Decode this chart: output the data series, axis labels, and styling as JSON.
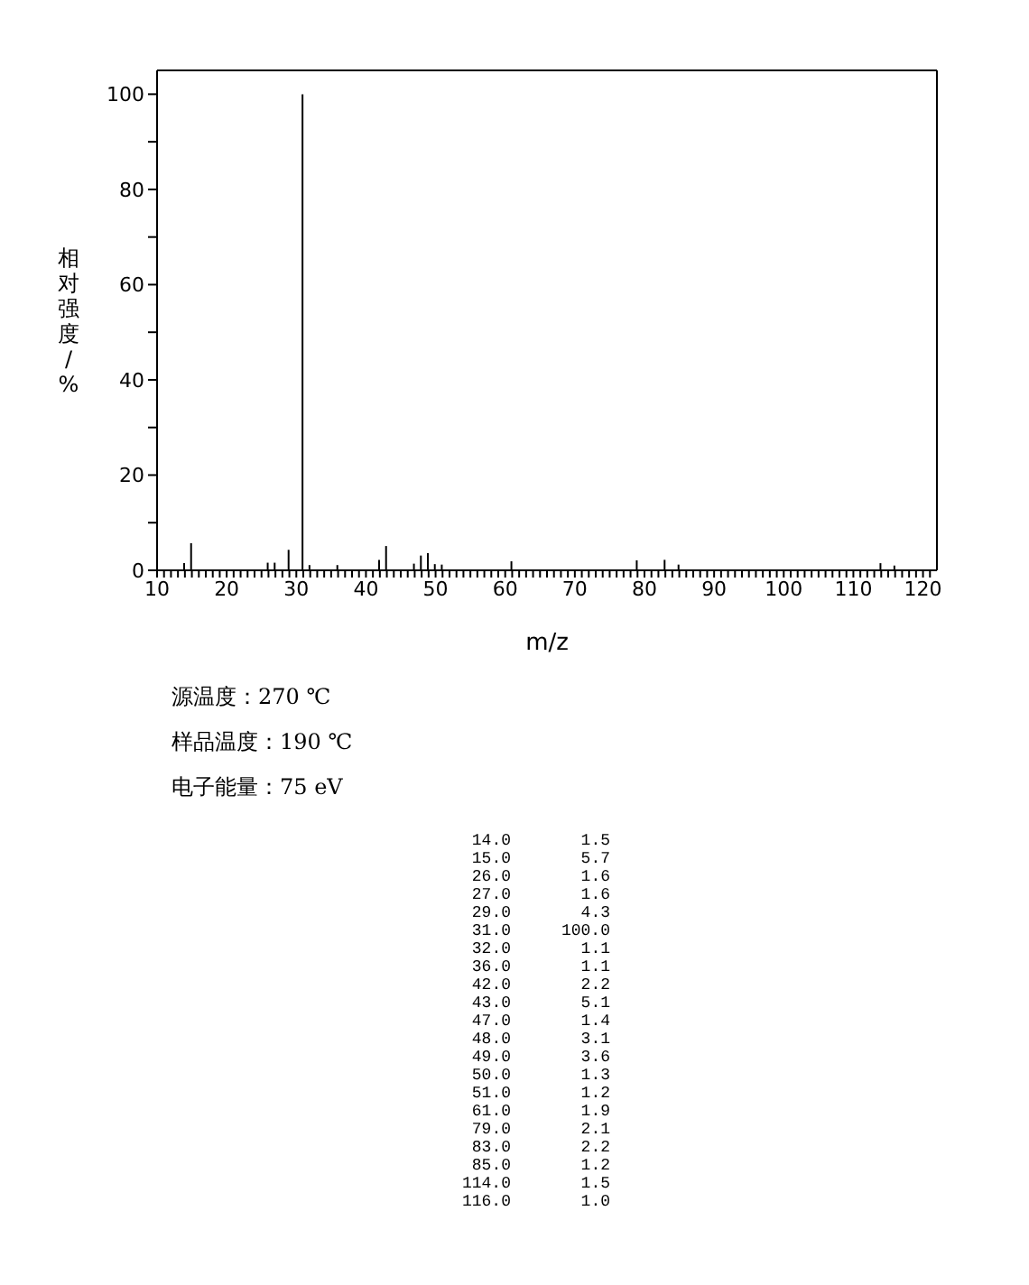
{
  "chart_data": {
    "type": "bar",
    "xlabel": "m/z",
    "ylabel": "相对强度/%",
    "x": [
      14,
      15,
      26,
      27,
      29,
      31,
      32,
      36,
      42,
      43,
      47,
      48,
      49,
      50,
      51,
      61,
      79,
      83,
      85,
      114,
      116
    ],
    "values": [
      1.5,
      5.7,
      1.6,
      1.6,
      4.3,
      100.0,
      1.1,
      1.1,
      2.2,
      5.1,
      1.4,
      3.1,
      3.6,
      1.3,
      1.2,
      1.9,
      2.1,
      2.2,
      1.2,
      1.5,
      1.0
    ],
    "color": "#000000",
    "xlim": [
      10,
      122
    ],
    "xticks": [
      10,
      {
        "value": 11,
        "label": null
      },
      {
        "value": 12,
        "label": null
      },
      {
        "value": 13,
        "label": null
      },
      {
        "value": 14,
        "label": null
      },
      {
        "value": 15,
        "label": null
      },
      {
        "value": 16,
        "label": null
      },
      {
        "value": 17,
        "label": null
      },
      {
        "value": 18,
        "label": null
      },
      {
        "value": 19,
        "label": null
      },
      20,
      {
        "value": 21,
        "label": null
      },
      {
        "value": 22,
        "label": null
      },
      {
        "value": 23,
        "label": null
      },
      {
        "value": 24,
        "label": null
      },
      {
        "value": 25,
        "label": null
      },
      {
        "value": 26,
        "label": null
      },
      {
        "value": 27,
        "label": null
      },
      {
        "value": 28,
        "label": null
      },
      {
        "value": 29,
        "label": null
      },
      30,
      {
        "value": 31,
        "label": null
      },
      {
        "value": 32,
        "label": null
      },
      {
        "value": 33,
        "label": null
      },
      {
        "value": 34,
        "label": null
      },
      {
        "value": 35,
        "label": null
      },
      {
        "value": 36,
        "label": null
      },
      {
        "value": 37,
        "label": null
      },
      {
        "value": 38,
        "label": null
      },
      {
        "value": 39,
        "label": null
      },
      40,
      {
        "value": 41,
        "label": null
      },
      {
        "value": 42,
        "label": null
      },
      {
        "value": 43,
        "label": null
      },
      {
        "value": 44,
        "label": null
      },
      {
        "value": 45,
        "label": null
      },
      {
        "value": 46,
        "label": null
      },
      {
        "value": 47,
        "label": null
      },
      {
        "value": 48,
        "label": null
      },
      {
        "value": 49,
        "label": null
      },
      50,
      {
        "value": 51,
        "label": null
      },
      {
        "value": 52,
        "label": null
      },
      {
        "value": 53,
        "label": null
      },
      {
        "value": 54,
        "label": null
      },
      {
        "value": 55,
        "label": null
      },
      {
        "value": 56,
        "label": null
      },
      {
        "value": 57,
        "label": null
      },
      {
        "value": 58,
        "label": null
      },
      {
        "value": 59,
        "label": null
      },
      60,
      {
        "value": 61,
        "label": null
      },
      {
        "value": 62,
        "label": null
      },
      {
        "value": 63,
        "label": null
      },
      {
        "value": 64,
        "label": null
      },
      {
        "value": 65,
        "label": null
      },
      {
        "value": 66,
        "label": null
      },
      {
        "value": 67,
        "label": null
      },
      {
        "value": 68,
        "label": null
      },
      {
        "value": 69,
        "label": null
      },
      70,
      {
        "value": 71,
        "label": null
      },
      {
        "value": 72,
        "label": null
      },
      {
        "value": 73,
        "label": null
      },
      {
        "value": 74,
        "label": null
      },
      {
        "value": 75,
        "label": null
      },
      {
        "value": 76,
        "label": null
      },
      {
        "value": 77,
        "label": null
      },
      {
        "value": 78,
        "label": null
      },
      {
        "value": 79,
        "label": null
      },
      80,
      {
        "value": 81,
        "label": null
      },
      {
        "value": 82,
        "label": null
      },
      {
        "value": 83,
        "label": null
      },
      {
        "value": 84,
        "label": null
      },
      {
        "value": 85,
        "label": null
      },
      {
        "value": 86,
        "label": null
      },
      {
        "value": 87,
        "label": null
      },
      {
        "value": 88,
        "label": null
      },
      {
        "value": 89,
        "label": null
      },
      90,
      {
        "value": 91,
        "label": null
      },
      {
        "value": 92,
        "label": null
      },
      {
        "value": 93,
        "label": null
      },
      {
        "value": 94,
        "label": null
      },
      {
        "value": 95,
        "label": null
      },
      {
        "value": 96,
        "label": null
      },
      {
        "value": 97,
        "label": null
      },
      {
        "value": 98,
        "label": null
      },
      {
        "value": 99,
        "label": null
      },
      100,
      {
        "value": 101,
        "label": null
      },
      {
        "value": 102,
        "label": null
      },
      {
        "value": 103,
        "label": null
      },
      {
        "value": 104,
        "label": null
      },
      {
        "value": 105,
        "label": null
      },
      {
        "value": 106,
        "label": null
      },
      {
        "value": 107,
        "label": null
      },
      {
        "value": 108,
        "label": null
      },
      {
        "value": 109,
        "label": null
      },
      110,
      {
        "value": 111,
        "label": null
      },
      {
        "value": 112,
        "label": null
      },
      {
        "value": 113,
        "label": null
      },
      {
        "value": 114,
        "label": null
      },
      {
        "value": 115,
        "label": null
      },
      {
        "value": 116,
        "label": null
      },
      {
        "value": 117,
        "label": null
      },
      {
        "value": 118,
        "label": null
      },
      {
        "value": 119,
        "label": null
      },
      120,
      {
        "value": 121,
        "label": null
      }
    ],
    "ylim": [
      0,
      105
    ],
    "yticks": [
      0,
      {
        "value": 10,
        "label": null
      },
      20,
      {
        "value": 30,
        "label": null
      },
      40,
      {
        "value": 50,
        "label": null
      },
      60,
      {
        "value": 70,
        "label": null
      },
      80,
      {
        "value": 90,
        "label": null
      },
      100
    ],
    "annotations": [
      "源温度：270 ℃",
      "样品温度：190 ℃",
      "电子能量：75 eV",
      "14.0",
      "1.5",
      "15.0",
      "5.7",
      "26.0",
      "1.6",
      "27.0",
      "1.6",
      "29.0",
      "4.3",
      "31.0",
      "100.0",
      "32.0",
      "1.1",
      "36.0",
      "1.1",
      "42.0",
      "2.2",
      "43.0",
      "5.1",
      "47.0",
      "1.4",
      "48.0",
      "3.1",
      "49.0",
      "3.6",
      "50.0",
      "1.3",
      "51.0",
      "1.2",
      "61.0",
      "1.9",
      "79.0",
      "2.1",
      "83.0",
      "2.2",
      "85.0",
      "1.2",
      "114.0",
      "1.5",
      "116.0",
      "1.0"
    ]
  }
}
